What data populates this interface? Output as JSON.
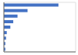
{
  "chart_data": {
    "type": "bar",
    "orientation": "horizontal",
    "categories": [
      null,
      null,
      null,
      null,
      null,
      null,
      null,
      null,
      null
    ],
    "values": [
      76,
      33,
      19,
      13,
      9,
      4,
      3,
      2,
      2
    ],
    "color": "#4472c4",
    "xlim": [
      0,
      100
    ],
    "xticks": [
      0,
      25,
      50,
      75,
      100
    ],
    "grid": true,
    "tick_labels": false
  }
}
